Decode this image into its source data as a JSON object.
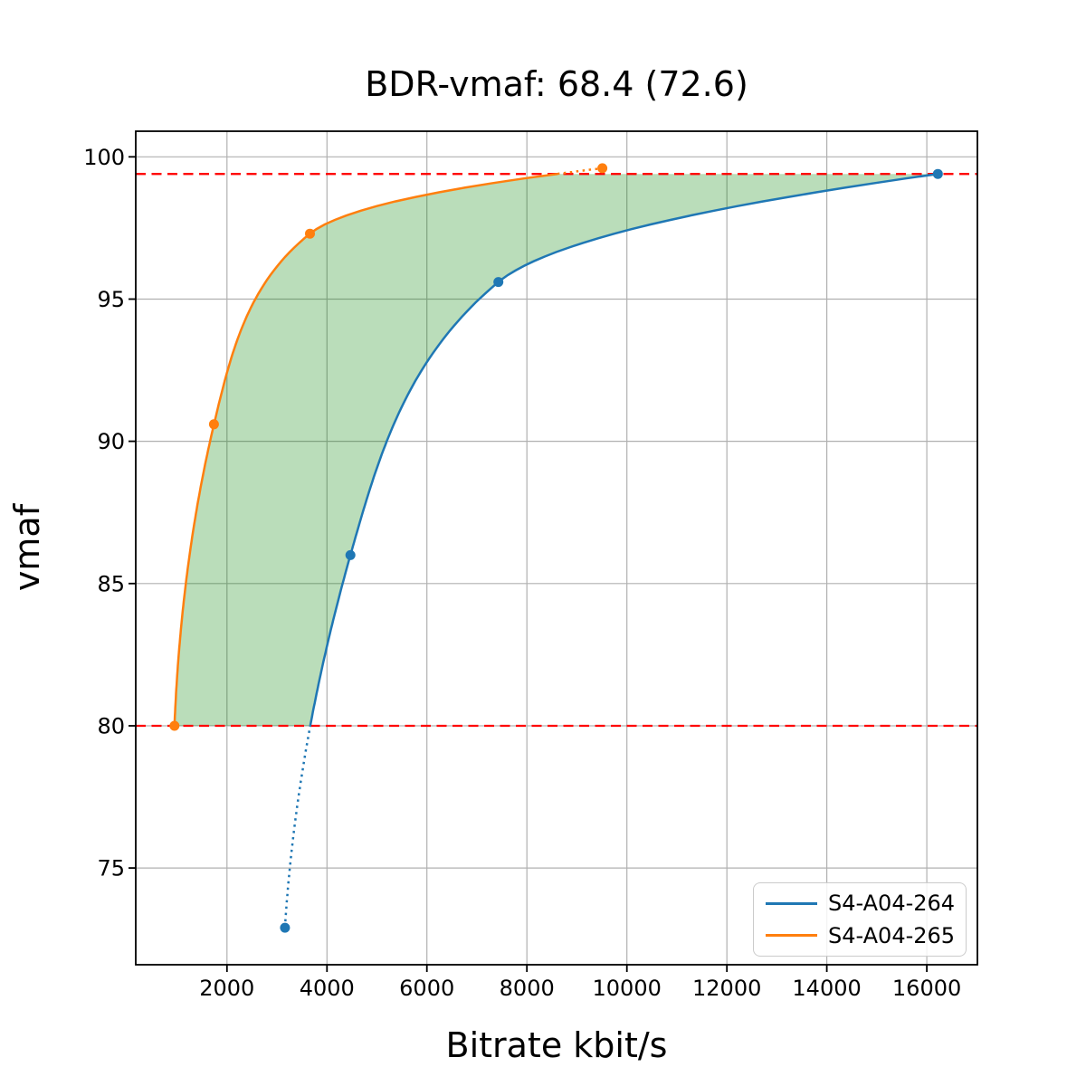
{
  "chart_data": {
    "type": "line",
    "title": "BDR-vmaf: 68.4 (72.6)",
    "xlabel": "Bitrate kbit/s",
    "ylabel": "vmaf",
    "xlim": [
      175,
      17012
    ],
    "ylim": [
      71.6,
      100.9
    ],
    "xticks": [
      2000,
      4000,
      6000,
      8000,
      10000,
      12000,
      14000,
      16000
    ],
    "yticks": [
      75,
      80,
      85,
      90,
      95,
      100
    ],
    "grid": true,
    "grid_color": "#b0b0b0",
    "background": "#ffffff",
    "series": [
      {
        "name": "S4-A04-264",
        "color": "#1f77b4",
        "points_bitrate_vmaf": [
          [
            3160,
            72.9
          ],
          [
            4470,
            86.0
          ],
          [
            7430,
            95.6
          ],
          [
            16220,
            99.4
          ]
        ]
      },
      {
        "name": "S4-A04-265",
        "color": "#ff7f0e",
        "points_bitrate_vmaf": [
          [
            950,
            80.0
          ],
          [
            1740,
            90.6
          ],
          [
            3660,
            97.3
          ],
          [
            9510,
            99.6
          ]
        ]
      }
    ],
    "overlap": {
      "vmaf_low": 80.0,
      "vmaf_high": 99.4,
      "line_color": "#ff0000",
      "line_style": "dashed",
      "fill_color": "rgba(0,128,0,0.27)"
    },
    "style_note": "curves solid inside overlap quality range, dotted outside",
    "legend": {
      "location": "lower right"
    }
  }
}
